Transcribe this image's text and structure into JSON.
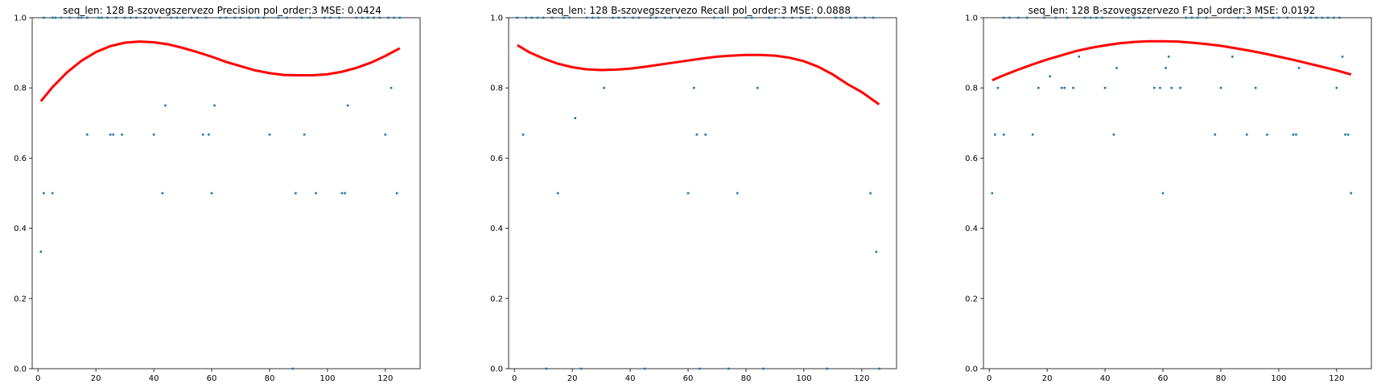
{
  "chart_data": [
    {
      "type": "scatter",
      "title": "seq_len: 128    B-szovegszervezo   Precision   pol_order:3   MSE: 0.0424",
      "xlim": [
        -2,
        132
      ],
      "ylim": [
        0,
        1.0
      ],
      "xticks": [
        0,
        20,
        40,
        60,
        80,
        100,
        120
      ],
      "yticks": [
        0.0,
        0.2,
        0.4,
        0.6,
        0.8,
        1.0
      ],
      "xtick_labels": [
        "0",
        "20",
        "40",
        "60",
        "80",
        "100",
        "120"
      ],
      "ytick_labels": [
        "0.0",
        "0.2",
        "0.4",
        "0.6",
        "0.8",
        "1.0"
      ],
      "point_color": "#1f77b4",
      "curve_color": "#ff0000",
      "points": [
        [
          1,
          0.333
        ],
        [
          2,
          0.5
        ],
        [
          5,
          0.5
        ],
        [
          17,
          0.667
        ],
        [
          25,
          0.667
        ],
        [
          26,
          0.667
        ],
        [
          29,
          0.667
        ],
        [
          40,
          0.667
        ],
        [
          43,
          0.5
        ],
        [
          44,
          0.75
        ],
        [
          57,
          0.667
        ],
        [
          59,
          0.667
        ],
        [
          60,
          0.5
        ],
        [
          61,
          0.75
        ],
        [
          80,
          0.667
        ],
        [
          88,
          0.0
        ],
        [
          89,
          0.5
        ],
        [
          92,
          0.667
        ],
        [
          96,
          0.5
        ],
        [
          105,
          0.5
        ],
        [
          106,
          0.5
        ],
        [
          107,
          0.75
        ],
        [
          120,
          0.667
        ],
        [
          122,
          0.8
        ],
        [
          124,
          0.5
        ],
        [
          2,
          1
        ],
        [
          5,
          1
        ],
        [
          6,
          1
        ],
        [
          8,
          1
        ],
        [
          11,
          1
        ],
        [
          14,
          1
        ],
        [
          15,
          1
        ],
        [
          17,
          1
        ],
        [
          21,
          1
        ],
        [
          22,
          1
        ],
        [
          24,
          1
        ],
        [
          27,
          1
        ],
        [
          30,
          1
        ],
        [
          32,
          1
        ],
        [
          34,
          1
        ],
        [
          37,
          1
        ],
        [
          39,
          1
        ],
        [
          42,
          1
        ],
        [
          46,
          1
        ],
        [
          48,
          1
        ],
        [
          50,
          1
        ],
        [
          53,
          1
        ],
        [
          55,
          1
        ],
        [
          58,
          1
        ],
        [
          63,
          1
        ],
        [
          65,
          1
        ],
        [
          68,
          1
        ],
        [
          70,
          1
        ],
        [
          73,
          1
        ],
        [
          76,
          1
        ],
        [
          78,
          1
        ],
        [
          83,
          1
        ],
        [
          86,
          1
        ],
        [
          91,
          1
        ],
        [
          94,
          1
        ],
        [
          99,
          1
        ],
        [
          101,
          1
        ],
        [
          104,
          1
        ],
        [
          110,
          1
        ],
        [
          112,
          1
        ],
        [
          114,
          1
        ],
        [
          116,
          1
        ],
        [
          118,
          1
        ],
        [
          121,
          1
        ],
        [
          123,
          1
        ],
        [
          125,
          1
        ]
      ],
      "fit_curve": {
        "x": [
          1,
          5,
          10,
          15,
          20,
          25,
          30,
          35,
          40,
          45,
          50,
          55,
          60,
          65,
          70,
          75,
          80,
          85,
          90,
          95,
          100,
          105,
          110,
          115,
          120,
          125
        ],
        "y": [
          0.762,
          0.802,
          0.844,
          0.877,
          0.902,
          0.919,
          0.929,
          0.932,
          0.93,
          0.924,
          0.914,
          0.902,
          0.889,
          0.874,
          0.862,
          0.85,
          0.842,
          0.837,
          0.836,
          0.836,
          0.839,
          0.846,
          0.857,
          0.872,
          0.891,
          0.913
        ]
      }
    },
    {
      "type": "scatter",
      "title": "seq_len: 128    B-szovegszervezo   Recall   pol_order:3   MSE: 0.0888",
      "xlim": [
        -2,
        132
      ],
      "ylim": [
        0,
        1.0
      ],
      "xticks": [
        0,
        20,
        40,
        60,
        80,
        100,
        120
      ],
      "yticks": [
        0.0,
        0.2,
        0.4,
        0.6,
        0.8,
        1.0
      ],
      "xtick_labels": [
        "0",
        "20",
        "40",
        "60",
        "80",
        "100",
        "120"
      ],
      "ytick_labels": [
        "0.0",
        "0.2",
        "0.4",
        "0.6",
        "0.8",
        "1.0"
      ],
      "point_color": "#1f77b4",
      "curve_color": "#ff0000",
      "points": [
        [
          3,
          0.667
        ],
        [
          15,
          0.5
        ],
        [
          21,
          0.714
        ],
        [
          31,
          0.8
        ],
        [
          60,
          0.5
        ],
        [
          62,
          0.8
        ],
        [
          63,
          0.667
        ],
        [
          66,
          0.667
        ],
        [
          77,
          0.5
        ],
        [
          84,
          0.8
        ],
        [
          123,
          0.5
        ],
        [
          125,
          0.333
        ],
        [
          11,
          0.0
        ],
        [
          23,
          0.0
        ],
        [
          45,
          0.0
        ],
        [
          64,
          0.0
        ],
        [
          74,
          0.0
        ],
        [
          86,
          0.0
        ],
        [
          108,
          0.0
        ],
        [
          126,
          0.0
        ],
        [
          1,
          1
        ],
        [
          4,
          1
        ],
        [
          6,
          1
        ],
        [
          8,
          1
        ],
        [
          10,
          1
        ],
        [
          13,
          1
        ],
        [
          17,
          1
        ],
        [
          19,
          1
        ],
        [
          25,
          1
        ],
        [
          27,
          1
        ],
        [
          29,
          1
        ],
        [
          34,
          1
        ],
        [
          36,
          1
        ],
        [
          38,
          1
        ],
        [
          41,
          1
        ],
        [
          43,
          1
        ],
        [
          47,
          1
        ],
        [
          49,
          1
        ],
        [
          52,
          1
        ],
        [
          54,
          1
        ],
        [
          57,
          1
        ],
        [
          69,
          1
        ],
        [
          72,
          1
        ],
        [
          80,
          1
        ],
        [
          82,
          1
        ],
        [
          88,
          1
        ],
        [
          90,
          1
        ],
        [
          93,
          1
        ],
        [
          96,
          1
        ],
        [
          99,
          1
        ],
        [
          102,
          1
        ],
        [
          104,
          1
        ],
        [
          111,
          1
        ],
        [
          113,
          1
        ],
        [
          116,
          1
        ],
        [
          118,
          1
        ],
        [
          121,
          1
        ],
        [
          124,
          1
        ]
      ],
      "fit_curve": {
        "x": [
          1,
          5,
          10,
          15,
          20,
          25,
          30,
          35,
          40,
          45,
          50,
          55,
          60,
          65,
          70,
          75,
          80,
          85,
          90,
          95,
          100,
          105,
          110,
          115,
          120,
          126
        ],
        "y": [
          0.922,
          0.902,
          0.884,
          0.869,
          0.859,
          0.853,
          0.851,
          0.852,
          0.855,
          0.86,
          0.866,
          0.872,
          0.878,
          0.884,
          0.889,
          0.892,
          0.894,
          0.894,
          0.892,
          0.886,
          0.876,
          0.86,
          0.838,
          0.811,
          0.788,
          0.753
        ]
      }
    },
    {
      "type": "scatter",
      "title": "seq_len: 128    B-szovegszervezo   F1   pol_order:3   MSE: 0.0192",
      "xlim": [
        -2,
        132
      ],
      "ylim": [
        0,
        1.0
      ],
      "xticks": [
        0,
        20,
        40,
        60,
        80,
        100,
        120
      ],
      "yticks": [
        0.0,
        0.2,
        0.4,
        0.6,
        0.8,
        1.0
      ],
      "xtick_labels": [
        "0",
        "20",
        "40",
        "60",
        "80",
        "100",
        "120"
      ],
      "ytick_labels": [
        "0.0",
        "0.2",
        "0.4",
        "0.6",
        "0.8",
        "1.0"
      ],
      "point_color": "#1f77b4",
      "curve_color": "#ff0000",
      "points": [
        [
          1,
          0.5
        ],
        [
          2,
          0.667
        ],
        [
          3,
          0.8
        ],
        [
          5,
          0.667
        ],
        [
          15,
          0.667
        ],
        [
          17,
          0.8
        ],
        [
          21,
          0.833
        ],
        [
          25,
          0.8
        ],
        [
          26,
          0.8
        ],
        [
          29,
          0.8
        ],
        [
          31,
          0.889
        ],
        [
          40,
          0.8
        ],
        [
          43,
          0.667
        ],
        [
          44,
          0.857
        ],
        [
          57,
          0.8
        ],
        [
          59,
          0.8
        ],
        [
          60,
          0.5
        ],
        [
          61,
          0.857
        ],
        [
          62,
          0.889
        ],
        [
          63,
          0.8
        ],
        [
          66,
          0.8
        ],
        [
          78,
          0.667
        ],
        [
          80,
          0.8
        ],
        [
          84,
          0.889
        ],
        [
          89,
          0.667
        ],
        [
          92,
          0.8
        ],
        [
          96,
          0.667
        ],
        [
          105,
          0.667
        ],
        [
          106,
          0.667
        ],
        [
          107,
          0.857
        ],
        [
          120,
          0.8
        ],
        [
          122,
          0.889
        ],
        [
          123,
          0.667
        ],
        [
          124,
          0.667
        ],
        [
          125,
          0.5
        ],
        [
          5,
          1
        ],
        [
          7,
          1
        ],
        [
          10,
          1
        ],
        [
          13,
          1
        ],
        [
          19,
          1
        ],
        [
          23,
          1
        ],
        [
          27,
          1
        ],
        [
          33,
          1
        ],
        [
          35,
          1
        ],
        [
          37,
          1
        ],
        [
          39,
          1
        ],
        [
          46,
          1
        ],
        [
          48,
          1
        ],
        [
          50,
          1
        ],
        [
          52,
          1
        ],
        [
          55,
          1
        ],
        [
          68,
          1
        ],
        [
          70,
          1
        ],
        [
          72,
          1
        ],
        [
          75,
          1
        ],
        [
          86,
          1
        ],
        [
          88,
          1
        ],
        [
          94,
          1
        ],
        [
          98,
          1
        ],
        [
          100,
          1
        ],
        [
          103,
          1
        ],
        [
          109,
          1
        ],
        [
          111,
          1
        ],
        [
          113,
          1
        ],
        [
          115,
          1
        ],
        [
          117,
          1
        ],
        [
          119,
          1
        ],
        [
          121,
          1
        ]
      ],
      "fit_curve": {
        "x": [
          1,
          5,
          10,
          15,
          20,
          25,
          30,
          35,
          40,
          45,
          50,
          55,
          60,
          65,
          70,
          75,
          80,
          85,
          90,
          95,
          100,
          105,
          110,
          115,
          120,
          125
        ],
        "y": [
          0.822,
          0.836,
          0.852,
          0.867,
          0.881,
          0.893,
          0.905,
          0.914,
          0.921,
          0.927,
          0.931,
          0.933,
          0.933,
          0.932,
          0.929,
          0.925,
          0.92,
          0.913,
          0.906,
          0.898,
          0.889,
          0.88,
          0.87,
          0.86,
          0.85,
          0.838
        ]
      }
    }
  ]
}
